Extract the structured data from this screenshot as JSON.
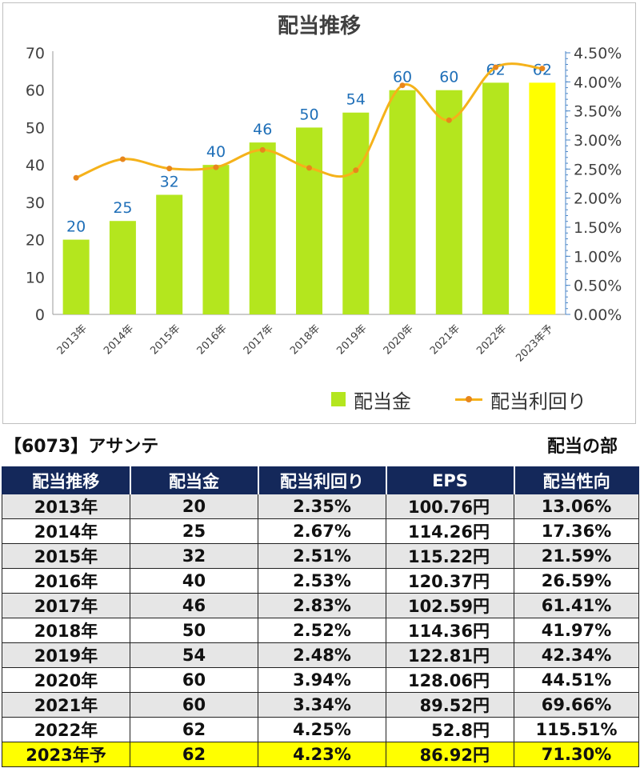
{
  "chart_data": {
    "type": "bar",
    "title": "配当推移",
    "categories": [
      "2013年",
      "2014年",
      "2015年",
      "2016年",
      "2017年",
      "2018年",
      "2019年",
      "2020年",
      "2021年",
      "2022年",
      "2023年予"
    ],
    "series": [
      {
        "name": "配当金",
        "type": "bar",
        "axis": "left",
        "values": [
          20,
          25,
          32,
          40,
          46,
          50,
          54,
          60,
          60,
          62,
          62
        ],
        "color": "#b4e61e",
        "highlight_last_color": "#ffff00",
        "labels_color": "#1f6fb8"
      },
      {
        "name": "配当利回り",
        "type": "line",
        "axis": "right",
        "values": [
          2.35,
          2.67,
          2.51,
          2.53,
          2.83,
          2.52,
          2.48,
          3.94,
          3.34,
          4.25,
          4.23
        ],
        "color": "#f5b21a",
        "marker_color": "#e8861c"
      }
    ],
    "ylim_left": [
      0,
      70
    ],
    "yticks_left": [
      "0",
      "10",
      "20",
      "30",
      "40",
      "50",
      "60",
      "70"
    ],
    "ylim_right": [
      0,
      4.5
    ],
    "yticks_right": [
      "0.00%",
      "0.50%",
      "1.00%",
      "1.50%",
      "2.00%",
      "2.50%",
      "3.00%",
      "3.50%",
      "4.00%",
      "4.50%"
    ],
    "legend": "bottom-right"
  },
  "table": {
    "company": "【6073】アサンテ",
    "section": "配当の部",
    "headers": [
      "配当推移",
      "配当金",
      "配当利回り",
      "EPS",
      "配当性向"
    ],
    "rows": [
      [
        "2013年",
        "20",
        "2.35%",
        "100.76円",
        "13.06%"
      ],
      [
        "2014年",
        "25",
        "2.67%",
        "114.26円",
        "17.36%"
      ],
      [
        "2015年",
        "32",
        "2.51%",
        "115.22円",
        "21.59%"
      ],
      [
        "2016年",
        "40",
        "2.53%",
        "120.37円",
        "26.59%"
      ],
      [
        "2017年",
        "46",
        "2.83%",
        "102.59円",
        "61.41%"
      ],
      [
        "2018年",
        "50",
        "2.52%",
        "114.36円",
        "41.97%"
      ],
      [
        "2019年",
        "54",
        "2.48%",
        "122.81円",
        "42.34%"
      ],
      [
        "2020年",
        "60",
        "3.94%",
        "128.06円",
        "44.51%"
      ],
      [
        "2021年",
        "60",
        "3.34%",
        "89.52円",
        "69.66%"
      ],
      [
        "2022年",
        "62",
        "4.25%",
        "52.8円",
        "115.51%"
      ],
      [
        "2023年予",
        "62",
        "4.23%",
        "86.92円",
        "71.30%"
      ]
    ],
    "forecast_color": "#ffff00",
    "header_color": "#14285a"
  }
}
